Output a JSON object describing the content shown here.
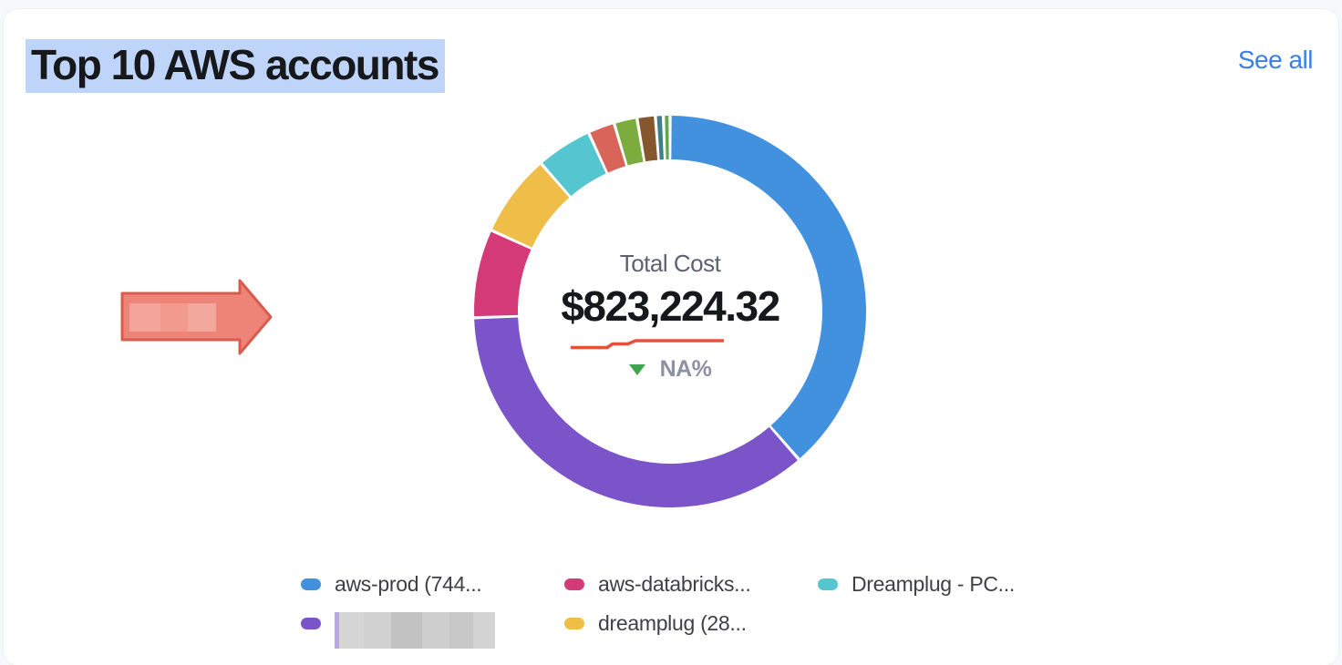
{
  "header": {
    "title": "Top 10 AWS accounts",
    "title_selection_color": "#bed4f9",
    "see_all_label": "See all",
    "see_all_color": "#3b7de9"
  },
  "chart_data": {
    "type": "pie",
    "donut": true,
    "title": "Top 10 AWS accounts",
    "center_label": "Total Cost",
    "center_value": "$823,224.32",
    "center_delta": "NA%",
    "delta_direction": "down",
    "delta_color": "#3fa64f",
    "trend_line_color": "#e8503b",
    "sparkline": [
      [
        0,
        10.5
      ],
      [
        40,
        10.5
      ],
      [
        46,
        6.5
      ],
      [
        63,
        6.5
      ],
      [
        71,
        3
      ],
      [
        168,
        3
      ]
    ],
    "legend_position": "bottom",
    "segments": [
      {
        "name": "aws-prod (744...",
        "value": 38.6,
        "color": "#4291df",
        "redacted": false
      },
      {
        "name": "",
        "value": 35.9,
        "color": "#7b54c9",
        "redacted": true
      },
      {
        "name": "aws-databricks...",
        "value": 7.3,
        "color": "#d43a78",
        "redacted": false
      },
      {
        "name": "dreamplug (28...",
        "value": 6.8,
        "color": "#efbe48",
        "redacted": false
      },
      {
        "name": "Dreamplug - PC...",
        "value": 4.6,
        "color": "#55c5cf",
        "redacted": false
      },
      {
        "name": "",
        "value": 2.2,
        "color": "#d96459",
        "redacted": false
      },
      {
        "name": "",
        "value": 1.9,
        "color": "#7cac3d",
        "redacted": false
      },
      {
        "name": "",
        "value": 1.5,
        "color": "#86562c",
        "redacted": false
      },
      {
        "name": "",
        "value": 0.65,
        "color": "#3f7f8a",
        "redacted": false
      },
      {
        "name": "",
        "value": 0.55,
        "color": "#61a848",
        "redacted": false
      }
    ]
  },
  "legend": {
    "visible_items": [
      {
        "label": "aws-prod (744...",
        "color": "#4291df",
        "redacted": false
      },
      {
        "label": "",
        "color": "#7b54c9",
        "redacted": true
      },
      {
        "label": "aws-databricks...",
        "color": "#d43a78",
        "redacted": false
      },
      {
        "label": "dreamplug (28...",
        "color": "#efbe48",
        "redacted": false
      },
      {
        "label": "Dreamplug - PC...",
        "color": "#55c5cf",
        "redacted": false
      }
    ]
  },
  "annotation": {
    "type": "arrow-right",
    "fill": "#ee8478",
    "border": "#d85c4e"
  }
}
